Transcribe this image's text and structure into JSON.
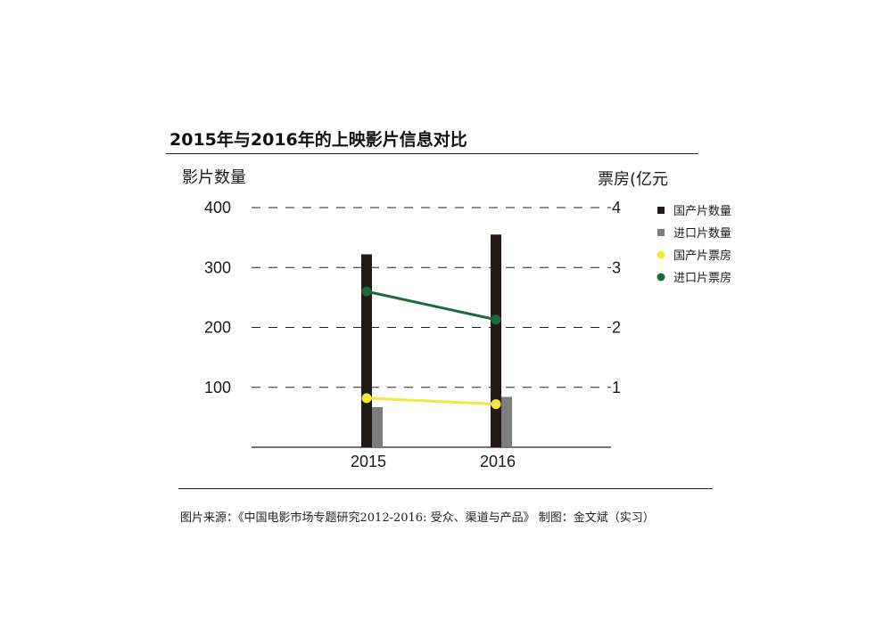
{
  "chart_data": {
    "type": "bar",
    "title": "2015年与2016年的上映影片信息对比",
    "categories": [
      "2015",
      "2016"
    ],
    "left_axis": {
      "label": "影片数量",
      "ticks": [
        "400",
        "300",
        "200",
        "100"
      ],
      "ylim": [
        0,
        400
      ]
    },
    "right_axis": {
      "label": "票房(亿元",
      "ticks": [
        "4",
        "3",
        "2",
        "1"
      ],
      "ylim": [
        0,
        4
      ]
    },
    "grid": "dashed",
    "legend_placement": "right",
    "series": [
      {
        "name": "国产片数量",
        "type": "bar",
        "axis": "left",
        "color": "#231815",
        "values": [
          322,
          355
        ]
      },
      {
        "name": "进口片数量",
        "type": "bar",
        "axis": "left",
        "color": "#7d7d7d",
        "values": [
          67,
          84
        ]
      },
      {
        "name": "国产片票房",
        "type": "line",
        "axis": "right",
        "color": "#f2e73c",
        "values": [
          0.82,
          0.72
        ]
      },
      {
        "name": "进口片票房",
        "type": "line",
        "axis": "right",
        "color": "#1d6b3c",
        "values": [
          2.6,
          2.13
        ]
      }
    ]
  },
  "source": "图片来源：《中国电影市场专题研究2012-2016: 受众、渠道与产品》 制图：金文斌（实习）"
}
